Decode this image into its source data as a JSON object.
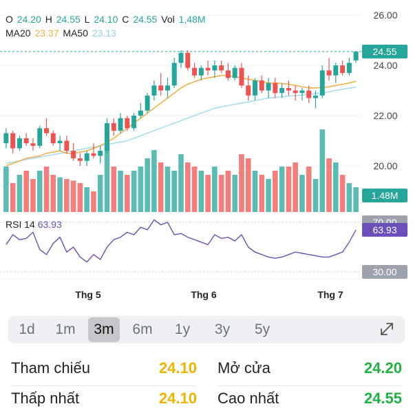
{
  "ohlc": {
    "o_label": "O",
    "o": "24.20",
    "h_label": "H",
    "h": "24.55",
    "l_label": "L",
    "l": "24.10",
    "c_label": "C",
    "c": "24.55",
    "vol_label": "Vol",
    "vol": "1,48M"
  },
  "ma": {
    "ma20_label": "MA20",
    "ma20": "23.37",
    "ma50_label": "MA50",
    "ma50": "23.13"
  },
  "rsi": {
    "label": "RSI 14",
    "value": "63.93"
  },
  "price_tag": "24.55",
  "volume_tag": "1.48M",
  "rsi_tag": "63.93",
  "colors": {
    "up": "#26a69a",
    "down": "#ef5350",
    "ma20": "#f0b14a",
    "ma50": "#a8dcf0",
    "rsi": "#6a4fb8"
  },
  "ranges": [
    {
      "label": "1d",
      "active": false
    },
    {
      "label": "1m",
      "active": false
    },
    {
      "label": "3m",
      "active": true
    },
    {
      "label": "6m",
      "active": false
    },
    {
      "label": "1y",
      "active": false
    },
    {
      "label": "3y",
      "active": false
    },
    {
      "label": "5y",
      "active": false
    }
  ],
  "expand_icon": "expand-arrows-icon",
  "stats": {
    "tham_chieu": {
      "label": "Tham chiếu",
      "value": "24.10",
      "color": "#f0b400"
    },
    "mo_cua": {
      "label": "Mở cửa",
      "value": "24.20",
      "color": "#1fb141"
    },
    "thap_nhat": {
      "label": "Thấp nhất",
      "value": "24.10",
      "color": "#f0b400"
    },
    "cao_nhat": {
      "label": "Cao nhất",
      "value": "24.55",
      "color": "#1fb141"
    }
  },
  "chart_data": {
    "type": "candlestick",
    "price_axis": {
      "ticks": [
        20.0,
        22.0,
        24.0,
        26.0
      ]
    },
    "rsi_axis": {
      "ticks": [
        30.0,
        70.0
      ]
    },
    "x_tick_labels": [
      "Thg 5",
      "Thg 6",
      "Thg 7"
    ],
    "series": [
      {
        "name": "MA20",
        "values": [
          20.0,
          20.1,
          20.2,
          20.3,
          20.35,
          20.4,
          20.5,
          20.55,
          20.6,
          20.5,
          20.5,
          20.55,
          20.6,
          20.7,
          20.8,
          20.95,
          21.1,
          21.3,
          21.5,
          21.7,
          21.9,
          22.1,
          22.3,
          22.5,
          22.7,
          22.9,
          23.1,
          23.25,
          23.35,
          23.45,
          23.5,
          23.55,
          23.6,
          23.6,
          23.55,
          23.5,
          23.45,
          23.4,
          23.35,
          23.3,
          23.3,
          23.28,
          23.25,
          23.2,
          23.15,
          23.1,
          23.1,
          23.12,
          23.15,
          23.2,
          23.25,
          23.3,
          23.37
        ]
      },
      {
        "name": "MA50",
        "values": [
          20.1,
          20.15,
          20.2,
          20.25,
          20.3,
          20.35,
          20.4,
          20.45,
          20.5,
          20.55,
          20.6,
          20.65,
          20.7,
          20.75,
          20.8,
          20.85,
          20.9,
          20.95,
          21.0,
          21.1,
          21.2,
          21.3,
          21.4,
          21.5,
          21.6,
          21.7,
          21.8,
          21.9,
          22.0,
          22.1,
          22.2,
          22.3,
          22.35,
          22.4,
          22.45,
          22.5,
          22.55,
          22.6,
          22.65,
          22.7,
          22.72,
          22.75,
          22.78,
          22.8,
          22.82,
          22.85,
          22.88,
          22.9,
          22.95,
          23.0,
          23.05,
          23.09,
          23.13
        ]
      },
      {
        "name": "RSI 14",
        "values": [
          52,
          60,
          56,
          57,
          62,
          48,
          44,
          53,
          58,
          46,
          50,
          42,
          38,
          44,
          40,
          50,
          56,
          58,
          62,
          60,
          66,
          64,
          72,
          68,
          70,
          60,
          61,
          58,
          56,
          54,
          52,
          60,
          57,
          58,
          55,
          60,
          50,
          46,
          44,
          42,
          41,
          42,
          44,
          46,
          45,
          44,
          43,
          42,
          42,
          44,
          46,
          54,
          63.93
        ]
      }
    ],
    "candles": [
      [
        20.9,
        21.5,
        20.7,
        21.3
      ],
      [
        21.3,
        21.4,
        20.5,
        20.7
      ],
      [
        20.7,
        21.2,
        20.6,
        21.1
      ],
      [
        21.1,
        21.3,
        20.8,
        20.9
      ],
      [
        20.9,
        21.1,
        20.6,
        20.8
      ],
      [
        20.8,
        21.6,
        20.7,
        21.5
      ],
      [
        21.5,
        21.9,
        21.2,
        21.3
      ],
      [
        21.3,
        21.4,
        20.8,
        20.9
      ],
      [
        20.9,
        21.2,
        20.6,
        21.0
      ],
      [
        21.0,
        21.2,
        20.5,
        20.6
      ],
      [
        20.6,
        20.9,
        20.2,
        20.3
      ],
      [
        20.3,
        20.5,
        20.0,
        20.2
      ],
      [
        20.2,
        20.6,
        20.0,
        20.5
      ],
      [
        20.5,
        20.9,
        20.3,
        20.4
      ],
      [
        20.4,
        20.8,
        20.1,
        20.6
      ],
      [
        20.6,
        21.9,
        20.5,
        21.7
      ],
      [
        21.7,
        21.9,
        21.2,
        21.4
      ],
      [
        21.4,
        22.1,
        21.3,
        21.9
      ],
      [
        21.9,
        22.0,
        21.4,
        21.5
      ],
      [
        21.5,
        22.1,
        21.4,
        22.0
      ],
      [
        22.0,
        22.5,
        21.9,
        22.2
      ],
      [
        22.2,
        22.9,
        22.1,
        22.8
      ],
      [
        22.8,
        23.4,
        22.6,
        23.2
      ],
      [
        23.2,
        23.7,
        22.8,
        23.0
      ],
      [
        23.0,
        23.5,
        22.7,
        23.2
      ],
      [
        23.2,
        24.3,
        23.1,
        24.1
      ],
      [
        24.1,
        24.6,
        23.9,
        24.5
      ],
      [
        24.5,
        24.6,
        23.8,
        23.9
      ],
      [
        23.9,
        24.1,
        23.5,
        23.6
      ],
      [
        23.6,
        24.0,
        23.4,
        23.9
      ],
      [
        23.9,
        24.2,
        23.6,
        23.8
      ],
      [
        23.8,
        24.2,
        23.5,
        24.0
      ],
      [
        24.0,
        24.2,
        23.7,
        23.8
      ],
      [
        23.8,
        24.1,
        23.4,
        23.5
      ],
      [
        23.5,
        24.0,
        23.4,
        23.9
      ],
      [
        23.9,
        24.1,
        23.1,
        23.2
      ],
      [
        23.2,
        23.6,
        22.6,
        22.8
      ],
      [
        22.8,
        23.5,
        22.6,
        23.4
      ],
      [
        23.4,
        23.6,
        22.9,
        23.0
      ],
      [
        23.0,
        23.5,
        22.7,
        23.3
      ],
      [
        23.3,
        23.5,
        22.7,
        22.9
      ],
      [
        22.9,
        23.3,
        22.7,
        23.1
      ],
      [
        23.1,
        23.4,
        22.8,
        23.0
      ],
      [
        23.0,
        23.2,
        22.6,
        22.9
      ],
      [
        22.9,
        23.1,
        22.6,
        23.0
      ],
      [
        23.0,
        23.2,
        22.5,
        22.7
      ],
      [
        22.7,
        23.0,
        22.3,
        22.8
      ],
      [
        22.8,
        24.0,
        22.7,
        23.8
      ],
      [
        23.8,
        24.3,
        23.4,
        23.6
      ],
      [
        23.6,
        24.1,
        23.3,
        24.0
      ],
      [
        24.0,
        24.2,
        23.6,
        23.7
      ],
      [
        23.7,
        24.3,
        23.6,
        24.1
      ],
      [
        24.2,
        24.55,
        24.1,
        24.55
      ]
    ],
    "volume_relative": [
      0.55,
      0.35,
      0.45,
      0.5,
      0.4,
      0.5,
      0.55,
      0.45,
      0.42,
      0.4,
      0.38,
      0.35,
      0.3,
      0.25,
      0.45,
      0.8,
      0.55,
      0.5,
      0.45,
      0.5,
      0.55,
      0.65,
      0.75,
      0.6,
      0.55,
      0.5,
      0.7,
      0.6,
      0.55,
      0.5,
      0.45,
      0.55,
      0.45,
      0.5,
      0.45,
      0.7,
      0.65,
      0.5,
      0.45,
      0.4,
      0.5,
      0.55,
      0.55,
      0.6,
      0.45,
      0.55,
      0.4,
      1.0,
      0.65,
      0.6,
      0.45,
      0.35,
      0.3
    ]
  }
}
